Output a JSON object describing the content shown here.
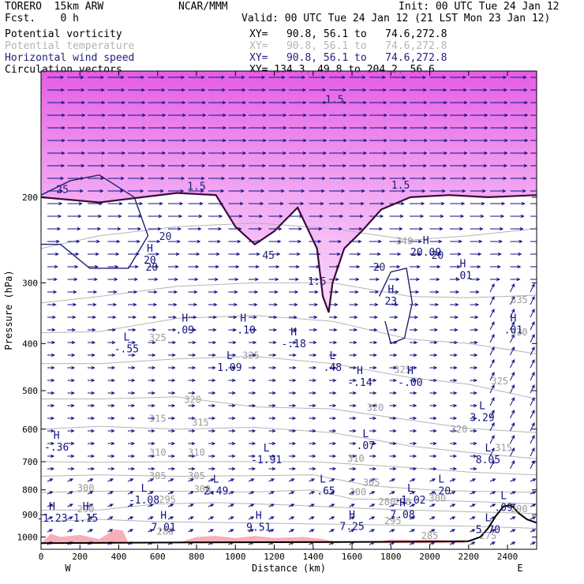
{
  "header": {
    "model": "TORERO  15km ARW",
    "org": "NCAR/MMM",
    "init": "Init: 00 UTC Tue 24 Jan 12",
    "fcst": "Fcst.    0 h",
    "valid": "Valid: 00 UTC Tue 24 Jan 12 (21 LST Mon 23 Jan 12)"
  },
  "fields": [
    {
      "name": "Potential vorticity",
      "xy": "XY=   90.8, 56.1 to   74.6,272.8",
      "color": "#000000"
    },
    {
      "name": "Potential temperature",
      "xy": "XY=   90.8, 56.1 to   74.6,272.8",
      "color": "#b4b4b4"
    },
    {
      "name": "Horizontal wind speed",
      "xy": "XY=   90.8, 56.1 to   74.6,272.8",
      "color": "#202080"
    },
    {
      "name": "Circulation vectors",
      "xy": "XY= 134.3, 49.8 to 204.2, 56.6",
      "color": "#000000"
    }
  ],
  "chart_data": {
    "type": "cross-section",
    "xlabel": "Distance (km)",
    "ylabel": "Pressure (hPa)",
    "xlim": [
      0,
      2550
    ],
    "ylim": [
      1060,
      110
    ],
    "y_scale": "log",
    "x_ticks": [
      "0",
      "200",
      "400",
      "600",
      "800",
      "1000",
      "1200",
      "1400",
      "1600",
      "1800",
      "2000",
      "2200",
      "2400"
    ],
    "x_tick_values": [
      0,
      200,
      400,
      600,
      800,
      1000,
      1200,
      1400,
      1600,
      1800,
      2000,
      2200,
      2400
    ],
    "y_ticks": [
      "200",
      "300",
      "400",
      "500",
      "600",
      "700",
      "800",
      "900",
      "1000"
    ],
    "y_tick_values": [
      200,
      300,
      400,
      500,
      600,
      700,
      800,
      900,
      1000
    ],
    "x_end_labels": {
      "left": "W",
      "right": "E"
    },
    "theta_contours": [
      {
        "label": "340",
        "points": [
          [
            0,
            255
          ],
          [
            300,
            240
          ],
          [
            700,
            230
          ],
          [
            1100,
            226
          ],
          [
            1500,
            232
          ],
          [
            1900,
            245
          ],
          [
            2200,
            240
          ],
          [
            2550,
            232
          ]
        ]
      },
      {
        "label": "335",
        "points": [
          [
            0,
            330
          ],
          [
            300,
            320
          ],
          [
            700,
            305
          ],
          [
            1100,
            300
          ],
          [
            1500,
            300
          ],
          [
            1900,
            320
          ],
          [
            2200,
            322
          ],
          [
            2550,
            318
          ]
        ]
      },
      {
        "label": "330",
        "points": [
          [
            0,
            380
          ],
          [
            300,
            378
          ],
          [
            700,
            355
          ],
          [
            1100,
            350
          ],
          [
            1500,
            360
          ],
          [
            1900,
            392
          ],
          [
            2200,
            400
          ],
          [
            2550,
            420
          ]
        ]
      },
      {
        "label": "325",
        "points": [
          [
            0,
            440
          ],
          [
            300,
            440
          ],
          [
            700,
            430
          ],
          [
            1100,
            425
          ],
          [
            1500,
            440
          ],
          [
            1900,
            470
          ],
          [
            2200,
            485
          ],
          [
            2550,
            520
          ]
        ]
      },
      {
        "label": "320",
        "points": [
          [
            0,
            520
          ],
          [
            300,
            520
          ],
          [
            700,
            515
          ],
          [
            1100,
            540
          ],
          [
            1500,
            545
          ],
          [
            1900,
            575
          ],
          [
            2200,
            598
          ],
          [
            2550,
            610
          ]
        ]
      },
      {
        "label": "315",
        "points": [
          [
            0,
            600
          ],
          [
            300,
            592
          ],
          [
            700,
            600
          ],
          [
            1100,
            595
          ],
          [
            1500,
            610
          ],
          [
            1900,
            650
          ],
          [
            2200,
            670
          ],
          [
            2550,
            690
          ]
        ]
      },
      {
        "label": "310",
        "points": [
          [
            0,
            700
          ],
          [
            300,
            702
          ],
          [
            700,
            700
          ],
          [
            1000,
            700
          ],
          [
            1400,
            700
          ],
          [
            1900,
            720
          ],
          [
            2200,
            735
          ],
          [
            2550,
            745
          ]
        ]
      },
      {
        "label": "305",
        "points": [
          [
            0,
            750
          ],
          [
            300,
            745
          ],
          [
            700,
            750
          ],
          [
            1100,
            748
          ],
          [
            1400,
            745
          ],
          [
            1700,
            785
          ],
          [
            2000,
            800
          ],
          [
            2200,
            805
          ],
          [
            2550,
            810
          ]
        ]
      },
      {
        "label": "300",
        "points": [
          [
            0,
            810
          ],
          [
            300,
            805
          ],
          [
            700,
            805
          ],
          [
            1100,
            808
          ],
          [
            1400,
            800
          ],
          [
            1600,
            835
          ],
          [
            2000,
            840
          ],
          [
            2200,
            845
          ],
          [
            2550,
            855
          ]
        ]
      },
      {
        "label": "295",
        "points": [
          [
            0,
            880
          ],
          [
            300,
            880
          ],
          [
            600,
            855
          ],
          [
            900,
            850
          ],
          [
            1300,
            860
          ],
          [
            1700,
            875
          ],
          [
            2100,
            885
          ],
          [
            2550,
            895
          ]
        ]
      },
      {
        "label": "290",
        "points": [
          [
            0,
            930
          ],
          [
            300,
            920
          ],
          [
            600,
            930
          ],
          [
            1000,
            935
          ],
          [
            1400,
            940
          ],
          [
            1800,
            945
          ],
          [
            2200,
            950
          ],
          [
            2550,
            960
          ]
        ]
      }
    ],
    "theta_labels": [
      {
        "text": "340",
        "x": 1870,
        "p": 250
      },
      {
        "text": "335",
        "x": 2460,
        "p": 330
      },
      {
        "text": "330",
        "x": 2460,
        "p": 385
      },
      {
        "text": "325",
        "x": 600,
        "p": 395
      },
      {
        "text": "325",
        "x": 1080,
        "p": 430
      },
      {
        "text": "325",
        "x": 1860,
        "p": 460
      },
      {
        "text": "325",
        "x": 2360,
        "p": 485
      },
      {
        "text": "320",
        "x": 780,
        "p": 530
      },
      {
        "text": "320",
        "x": 1720,
        "p": 550
      },
      {
        "text": "320",
        "x": 2150,
        "p": 610
      },
      {
        "text": "315",
        "x": 600,
        "p": 580
      },
      {
        "text": "315",
        "x": 820,
        "p": 590
      },
      {
        "text": "315",
        "x": 2380,
        "p": 665
      },
      {
        "text": "310",
        "x": 600,
        "p": 680
      },
      {
        "text": "310",
        "x": 800,
        "p": 680
      },
      {
        "text": "310",
        "x": 1620,
        "p": 700
      },
      {
        "text": "305",
        "x": 600,
        "p": 760
      },
      {
        "text": "305",
        "x": 800,
        "p": 760
      },
      {
        "text": "305",
        "x": 1700,
        "p": 785
      },
      {
        "text": "300",
        "x": 230,
        "p": 805
      },
      {
        "text": "300",
        "x": 830,
        "p": 810
      },
      {
        "text": "300",
        "x": 1630,
        "p": 820
      },
      {
        "text": "300",
        "x": 2040,
        "p": 845
      },
      {
        "text": "295",
        "x": 650,
        "p": 850
      },
      {
        "text": "295",
        "x": 1810,
        "p": 940
      },
      {
        "text": "290",
        "x": 230,
        "p": 890
      },
      {
        "text": "290",
        "x": 1860,
        "p": 860
      },
      {
        "text": "290",
        "x": 2460,
        "p": 890
      },
      {
        "text": "280",
        "x": 1780,
        "p": 860
      },
      {
        "text": "275",
        "x": 2300,
        "p": 1010
      },
      {
        "text": "285",
        "x": 2000,
        "p": 1010
      },
      {
        "text": "280",
        "x": 640,
        "p": 990
      }
    ],
    "pv_contours": [
      {
        "label": "1.5",
        "points": [
          [
            0,
            200
          ],
          [
            300,
            205
          ],
          [
            700,
            196
          ],
          [
            900,
            198
          ],
          [
            1000,
            230
          ],
          [
            1100,
            250
          ],
          [
            1200,
            235
          ],
          [
            1320,
            210
          ],
          [
            1420,
            255
          ],
          [
            1450,
            320
          ],
          [
            1480,
            345
          ],
          [
            1500,
            300
          ],
          [
            1560,
            255
          ],
          [
            1650,
            235
          ],
          [
            1750,
            212
          ],
          [
            1900,
            200
          ],
          [
            2100,
            198
          ],
          [
            2300,
            200
          ],
          [
            2550,
            198
          ]
        ]
      }
    ],
    "pv_labels": [
      {
        "text": "1.5",
        "x": 800,
        "p": 193
      },
      {
        "text": "1.5",
        "x": 1420,
        "p": 303
      },
      {
        "text": "1.5",
        "x": 1850,
        "p": 192
      },
      {
        "text": "1.5",
        "x": 1510,
        "p": 128
      }
    ],
    "wind_contours": [
      {
        "label": "25",
        "points": [
          [
            0,
            198
          ],
          [
            150,
            185
          ],
          [
            300,
            180
          ],
          [
            480,
            200
          ],
          [
            550,
            240
          ],
          [
            450,
            280
          ],
          [
            250,
            280
          ],
          [
            100,
            250
          ],
          [
            0,
            250
          ]
        ]
      },
      {
        "label": "20",
        "points": [
          [
            1740,
            320
          ],
          [
            1800,
            285
          ],
          [
            1880,
            280
          ],
          [
            1910,
            330
          ],
          [
            1870,
            390
          ],
          [
            1800,
            400
          ],
          [
            1770,
            360
          ]
        ]
      }
    ],
    "wind_labels": [
      {
        "text": "25",
        "x": 110,
        "p": 196
      },
      {
        "text": "20",
        "x": 640,
        "p": 245
      },
      {
        "text": "20",
        "x": 570,
        "p": 283
      },
      {
        "text": "45",
        "x": 1170,
        "p": 268
      },
      {
        "text": "20",
        "x": 1740,
        "p": 283
      },
      {
        "text": "20",
        "x": 2040,
        "p": 268
      }
    ],
    "extrema": [
      {
        "type": "H",
        "value": "20",
        "x": 560,
        "p": 268
      },
      {
        "type": "H",
        "value": ".09",
        "x": 740,
        "p": 373
      },
      {
        "type": "H",
        "value": "-.10",
        "x": 1040,
        "p": 373
      },
      {
        "type": "H",
        "value": "-.18",
        "x": 1300,
        "p": 398
      },
      {
        "type": "H",
        "value": "23",
        "x": 1800,
        "p": 325
      },
      {
        "type": "H",
        "value": "20.09",
        "x": 1980,
        "p": 258
      },
      {
        "type": "H",
        "value": ".01",
        "x": 2170,
        "p": 288
      },
      {
        "type": "H",
        "value": ".01",
        "x": 2430,
        "p": 373
      },
      {
        "type": "L",
        "value": "-.55",
        "x": 440,
        "p": 408
      },
      {
        "type": "L",
        "value": "1.09",
        "x": 970,
        "p": 445
      },
      {
        "type": "L",
        "value": ".48",
        "x": 1500,
        "p": 445
      },
      {
        "type": "H",
        "value": "-.14",
        "x": 1640,
        "p": 478
      },
      {
        "type": "H",
        "value": "-.00",
        "x": 1900,
        "p": 478
      },
      {
        "type": "L",
        "value": "3.29",
        "x": 2270,
        "p": 565
      },
      {
        "type": "H",
        "value": "-.36",
        "x": 80,
        "p": 650
      },
      {
        "type": "L",
        "value": ".07",
        "x": 1670,
        "p": 645
      },
      {
        "type": "L",
        "value": "-1.91",
        "x": 1160,
        "p": 690
      },
      {
        "type": "L",
        "value": "8.05",
        "x": 2300,
        "p": 690
      },
      {
        "type": "L",
        "value": "2.49",
        "x": 900,
        "p": 800
      },
      {
        "type": "L",
        "value": "-.65",
        "x": 1450,
        "p": 800
      },
      {
        "type": "L",
        "value": ".20",
        "x": 2060,
        "p": 800
      },
      {
        "type": "L",
        "value": "-1.08",
        "x": 530,
        "p": 835
      },
      {
        "type": "L",
        "value": "-1.02",
        "x": 1900,
        "p": 835
      },
      {
        "type": "L",
        "value": ".09",
        "x": 2380,
        "p": 865
      },
      {
        "type": "H",
        "value": "7.08",
        "x": 1860,
        "p": 895
      },
      {
        "type": "H",
        "value": "-1.23",
        "x": 0,
        "p": 910
      },
      {
        "type": "H",
        "value": "1.15",
        "x": 230,
        "p": 910
      },
      {
        "type": "H",
        "value": "7.01",
        "x": 630,
        "p": 950
      },
      {
        "type": "H",
        "value": "9.51",
        "x": 1120,
        "p": 950
      },
      {
        "type": "H",
        "value": "7.25",
        "x": 1600,
        "p": 945
      },
      {
        "type": "L",
        "value": "5.70",
        "x": 2300,
        "p": 960
      }
    ],
    "terrain": [
      [
        0,
        1030
      ],
      [
        400,
        1028
      ],
      [
        800,
        1026
      ],
      [
        1200,
        1025
      ],
      [
        1600,
        1024
      ],
      [
        2000,
        1022
      ],
      [
        2200,
        1020
      ],
      [
        2260,
        1000
      ],
      [
        2300,
        960
      ],
      [
        2340,
        905
      ],
      [
        2380,
        865
      ],
      [
        2420,
        860
      ],
      [
        2460,
        895
      ],
      [
        2500,
        920
      ],
      [
        2550,
        935
      ]
    ],
    "wind_pattern": "westerly flow throughout, strongest near 200-300 hPa; weak vertical vectors near the eastern terrain"
  }
}
